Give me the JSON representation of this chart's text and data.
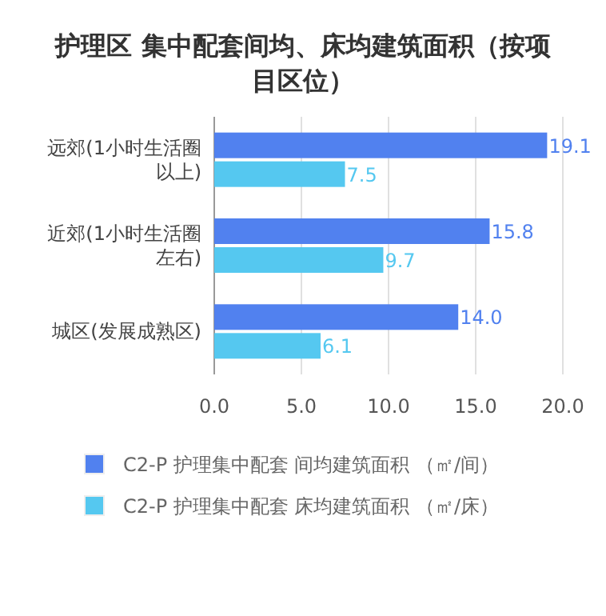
{
  "chart_data": {
    "type": "bar",
    "orientation": "horizontal",
    "title": "护理区 集中配套间均、床均建筑面积（按项目区位）",
    "categories": [
      "远郊(1小时生活圈以上)",
      "近郊(1小时生活圈左右)",
      "城区(发展成熟区)"
    ],
    "series": [
      {
        "name": "C2-P 护理集中配套 间均建筑面积 （㎡/间）",
        "color": "#5181ef",
        "values": [
          19.1,
          15.8,
          14.0
        ],
        "value_labels": [
          "19.1",
          "15.8",
          "14.0"
        ]
      },
      {
        "name": "C2-P 护理集中配套 床均建筑面积 （㎡/床）",
        "color": "#55c8f0",
        "values": [
          7.5,
          9.7,
          6.1
        ],
        "value_labels": [
          "7.5",
          "9.7",
          "6.1"
        ]
      }
    ],
    "xlim": [
      0,
      20
    ],
    "xticks": [
      {
        "value": 0,
        "label": "0.0"
      },
      {
        "value": 5,
        "label": "5.0"
      },
      {
        "value": 10,
        "label": "10.0"
      },
      {
        "value": 15,
        "label": "15.0"
      },
      {
        "value": 20,
        "label": "20.0"
      }
    ],
    "grid": "x",
    "legend": "bottom",
    "marker": "square"
  }
}
